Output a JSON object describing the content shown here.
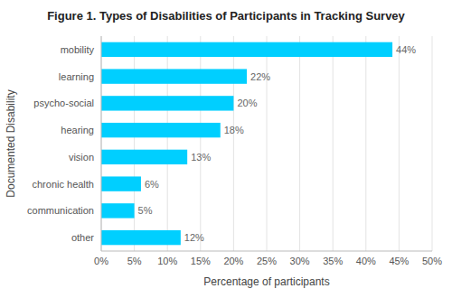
{
  "chart_data": {
    "type": "bar",
    "orientation": "horizontal",
    "title": "Figure 1. Types of Disabilities of Participants in Tracking Survey",
    "categories": [
      "mobility",
      "learning",
      "psycho-social",
      "hearing",
      "vision",
      "chronic health",
      "communication",
      "other"
    ],
    "values": [
      44,
      22,
      20,
      18,
      13,
      6,
      5,
      12
    ],
    "value_labels": [
      "44%",
      "22%",
      "20%",
      "18%",
      "13%",
      "6%",
      "5%",
      "12%"
    ],
    "data_labels": true,
    "color": "#00CFFF",
    "xlabel": "Percentage of participants",
    "ylabel": "Documented Disability",
    "xlim": [
      0,
      50
    ],
    "xticks": [
      {
        "value": 0,
        "label": "0%"
      },
      {
        "value": 5,
        "label": "5%"
      },
      {
        "value": 10,
        "label": "10%"
      },
      {
        "value": 15,
        "label": "15%"
      },
      {
        "value": 20,
        "label": "20%"
      },
      {
        "value": 25,
        "label": "25%"
      },
      {
        "value": 30,
        "label": "30%"
      },
      {
        "value": 35,
        "label": "35%"
      },
      {
        "value": 40,
        "label": "40%"
      },
      {
        "value": 45,
        "label": "45%"
      },
      {
        "value": 50,
        "label": "50%"
      }
    ],
    "grid": true
  }
}
